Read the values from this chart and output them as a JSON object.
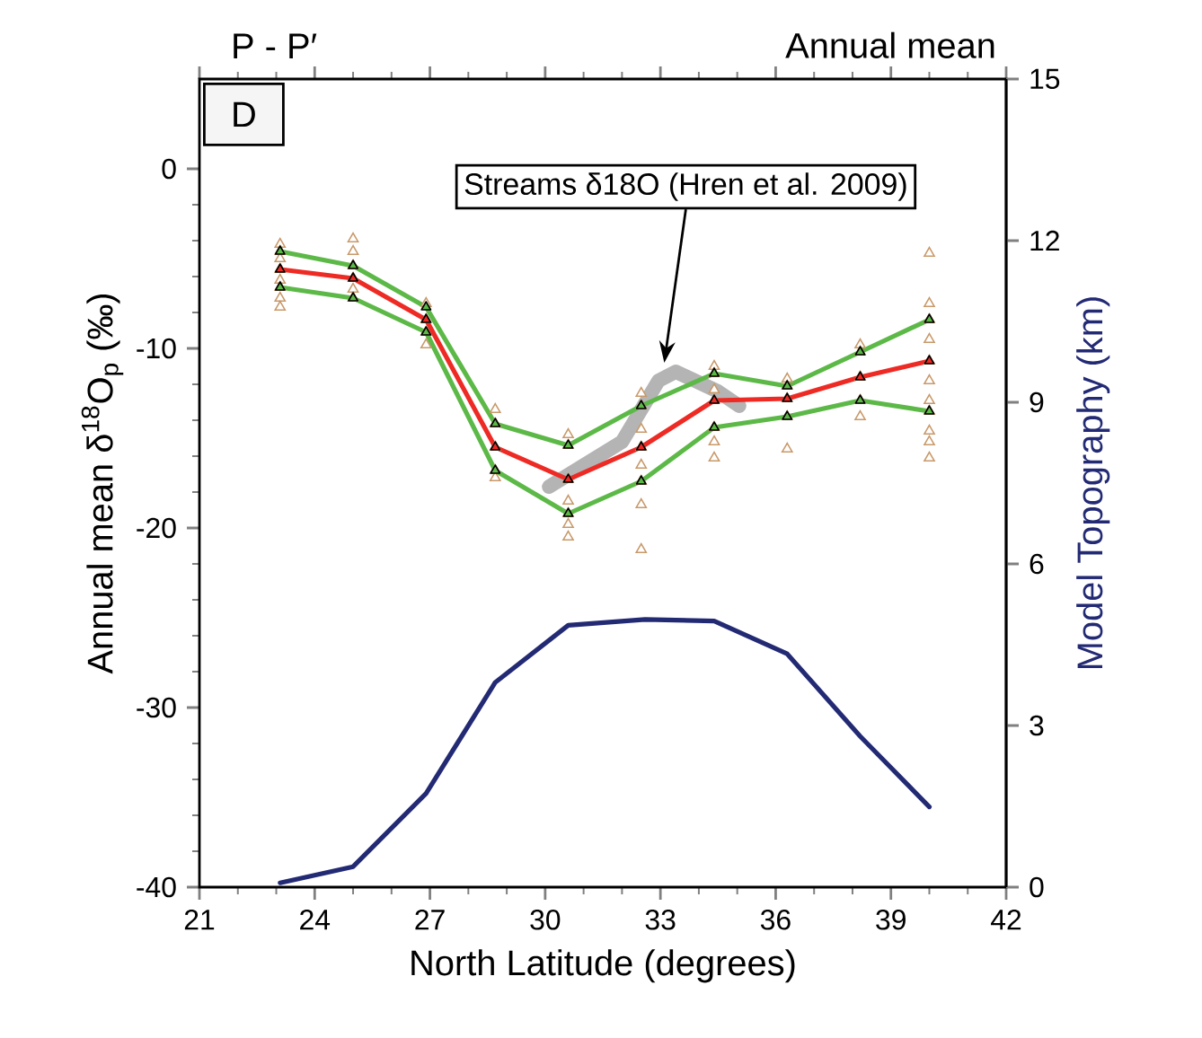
{
  "chart_data": {
    "type": "line",
    "title": "P - P′",
    "subtitle": "Annual mean",
    "xlabel": "North Latitude (degrees)",
    "ylabel": "Annual mean δ$^{18}$O$_{p}$ (‰)",
    "y2label": "Model Topography (km)",
    "xlim": [
      21,
      42
    ],
    "xticks": [
      21,
      24,
      27,
      30,
      33,
      36,
      39,
      42
    ],
    "ylim": [
      -40,
      5
    ],
    "yticks": [
      -40,
      -30,
      -20,
      -10,
      0
    ],
    "y2lim": [
      0,
      15
    ],
    "y2ticks": [
      0,
      3,
      6,
      9,
      12,
      15
    ],
    "annotations": [
      "D",
      {
        "text": "Streams δ18O (Hren et al. 2009)",
        "x": 33.1,
        "y": -10.8
      }
    ],
    "series": [
      {
        "type": "scatter",
        "color": "#c8996a",
        "marker": "triangle",
        "x": [
          23.1,
          23.1,
          23.1,
          23.1,
          23.1,
          23.1,
          23.1,
          23.1,
          25.0,
          25.0,
          25.0,
          25.0,
          25.0,
          25.0,
          26.9,
          26.9,
          26.9,
          26.9,
          28.7,
          28.7,
          28.7,
          28.7,
          28.7,
          30.6,
          30.6,
          30.6,
          30.6,
          30.6,
          30.6,
          30.6,
          32.5,
          32.5,
          32.5,
          32.5,
          32.5,
          32.5,
          32.5,
          32.5,
          34.4,
          34.4,
          34.4,
          34.4,
          34.4,
          34.4,
          34.4,
          36.3,
          36.3,
          36.3,
          36.3,
          36.3,
          38.2,
          38.2,
          38.2,
          38.2,
          38.2,
          40.0,
          40.0,
          40.0,
          40.0,
          40.0,
          40.0,
          40.0,
          40.0,
          40.0,
          40.0,
          40.0
        ],
        "values": [
          -4.2,
          -4.6,
          -5.0,
          -5.6,
          -6.2,
          -6.6,
          -7.2,
          -7.7,
          -3.9,
          -4.6,
          -5.4,
          -6.1,
          -6.7,
          -7.2,
          -7.5,
          -8.4,
          -9.1,
          -9.8,
          -13.4,
          -14.2,
          -15.5,
          -16.8,
          -17.2,
          -14.8,
          -15.4,
          -17.3,
          -18.5,
          -19.2,
          -19.8,
          -20.5,
          -12.5,
          -13.2,
          -14.5,
          -15.5,
          -16.5,
          -17.4,
          -18.7,
          -21.2,
          -11.0,
          -11.4,
          -12.3,
          -12.9,
          -14.4,
          -15.2,
          -16.1,
          -11.7,
          -12.1,
          -12.8,
          -13.8,
          -15.6,
          -9.8,
          -10.2,
          -11.6,
          -12.9,
          -13.8,
          -4.7,
          -7.5,
          -8.4,
          -9.5,
          -10.7,
          -11.8,
          -12.9,
          -13.5,
          -14.6,
          -15.2,
          -16.1
        ]
      },
      {
        "color": "#b4b4b4",
        "marker": "none",
        "x": [
          30.1,
          32.0,
          32.95,
          33.4,
          34.5,
          35.05
        ],
        "values": [
          -17.7,
          -15.2,
          -11.8,
          -11.3,
          -12.4,
          -13.2
        ]
      },
      {
        "color": "#5cb947",
        "marker": "triangle",
        "x": [
          23.1,
          25.0,
          26.9,
          28.7,
          30.6,
          32.5,
          34.4,
          36.3,
          38.2,
          40.0
        ],
        "values": [
          -4.6,
          -5.4,
          -7.7,
          -14.2,
          -15.4,
          -13.2,
          -11.4,
          -12.1,
          -10.2,
          -8.4
        ]
      },
      {
        "color": "#5cb947",
        "marker": "triangle",
        "x": [
          23.1,
          25.0,
          26.9,
          28.7,
          30.6,
          32.5,
          34.4,
          36.3,
          38.2,
          40.0
        ],
        "values": [
          -6.6,
          -7.2,
          -9.1,
          -16.8,
          -19.2,
          -17.4,
          -14.4,
          -13.8,
          -12.9,
          -13.5
        ]
      },
      {
        "color": "#ee2a24",
        "marker": "triangle",
        "x": [
          23.1,
          25.0,
          26.9,
          28.7,
          30.6,
          32.5,
          34.4,
          36.3,
          38.2,
          40.0
        ],
        "values": [
          -5.6,
          -6.1,
          -8.4,
          -15.5,
          -17.3,
          -15.5,
          -12.9,
          -12.8,
          -11.6,
          -10.7
        ]
      },
      {
        "color": "#232a74",
        "marker": "none",
        "axis": "y2",
        "x": [
          23.1,
          25.0,
          26.9,
          28.7,
          30.6,
          32.6,
          34.4,
          36.3,
          38.2,
          40.0
        ],
        "values": [
          0.08,
          0.38,
          1.74,
          3.8,
          4.86,
          4.97,
          4.94,
          4.33,
          2.8,
          1.49
        ]
      }
    ]
  }
}
